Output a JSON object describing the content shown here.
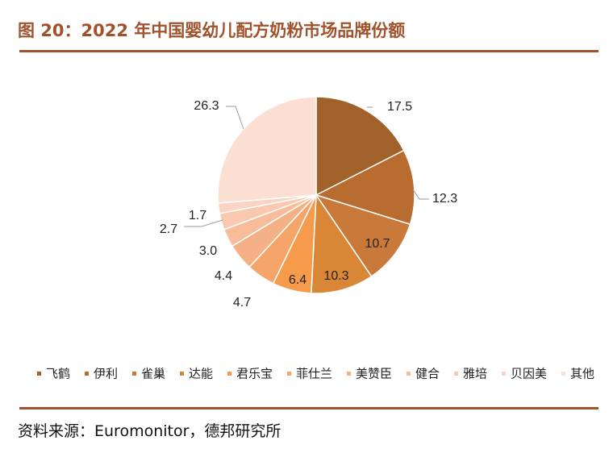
{
  "title": "图 20：2022 年中国婴幼儿配方奶粉市场品牌份额",
  "source": "资料来源：Euromonitor，德邦研究所",
  "chart_data": {
    "type": "pie",
    "title": "",
    "categories": [
      "飞鹤",
      "伊利",
      "雀巢",
      "达能",
      "君乐宝",
      "菲仕兰",
      "美赞臣",
      "健合",
      "雅培",
      "贝因美",
      "其他"
    ],
    "values": [
      17.5,
      12.3,
      10.7,
      10.3,
      6.4,
      4.7,
      4.4,
      3.0,
      2.7,
      1.7,
      26.3
    ],
    "value_labels": [
      "17.5",
      "12.3",
      "10.7",
      "10.3",
      "6.4",
      "4.7",
      "4.4",
      "3.0",
      "2.7",
      "1.7",
      "26.3"
    ],
    "colors": [
      "#a0612b",
      "#b96c30",
      "#c97a3a",
      "#d98737",
      "#f69a4c",
      "#f5a56a",
      "#f4b185",
      "#f7bd9a",
      "#f9c8af",
      "#fbd3c2",
      "#fcdfd3"
    ],
    "legend_position": "bottom"
  }
}
